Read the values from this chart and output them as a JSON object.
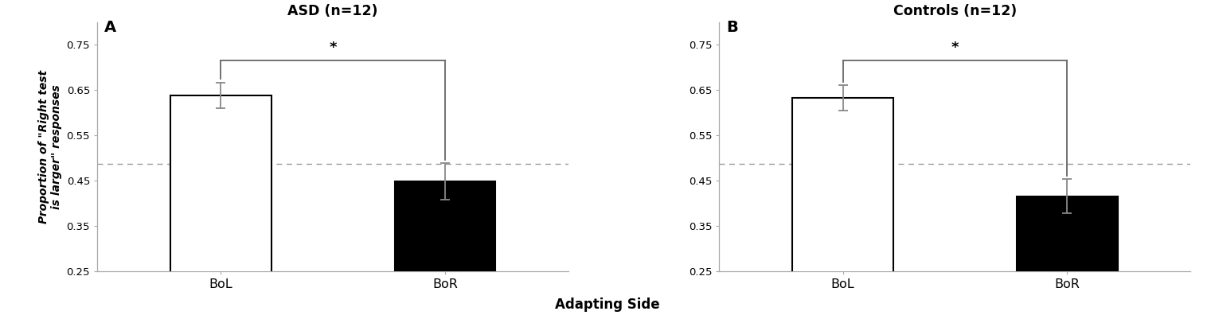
{
  "panel_A": {
    "title": "ASD (n=12)",
    "label": "A",
    "categories": [
      "BoL",
      "BoR"
    ],
    "values": [
      0.638,
      0.448
    ],
    "errors": [
      0.028,
      0.04
    ],
    "bar_colors": [
      "white",
      "black"
    ],
    "bar_edgecolors": [
      "black",
      "black"
    ]
  },
  "panel_B": {
    "title": "Controls (n=12)",
    "label": "B",
    "categories": [
      "BoL",
      "BoR"
    ],
    "values": [
      0.632,
      0.415
    ],
    "errors": [
      0.028,
      0.038
    ],
    "bar_colors": [
      "white",
      "black"
    ],
    "bar_edgecolors": [
      "black",
      "black"
    ]
  },
  "ylabel": "Proportion of \"Right test\nis larger\" responses",
  "xlabel": "Adapting Side",
  "ylim": [
    0.25,
    0.8
  ],
  "yticks": [
    0.25,
    0.35,
    0.45,
    0.55,
    0.65,
    0.75
  ],
  "ytick_labels": [
    "0.25",
    "0.35",
    "0.45",
    "0.55",
    "0.65",
    "0.75"
  ],
  "hline": 0.487,
  "hline_color": "#999999",
  "bracket_color": "#666666",
  "error_color": "#888888",
  "bar_width": 0.45,
  "figure_bg": "white",
  "spine_color": "#aaaaaa"
}
